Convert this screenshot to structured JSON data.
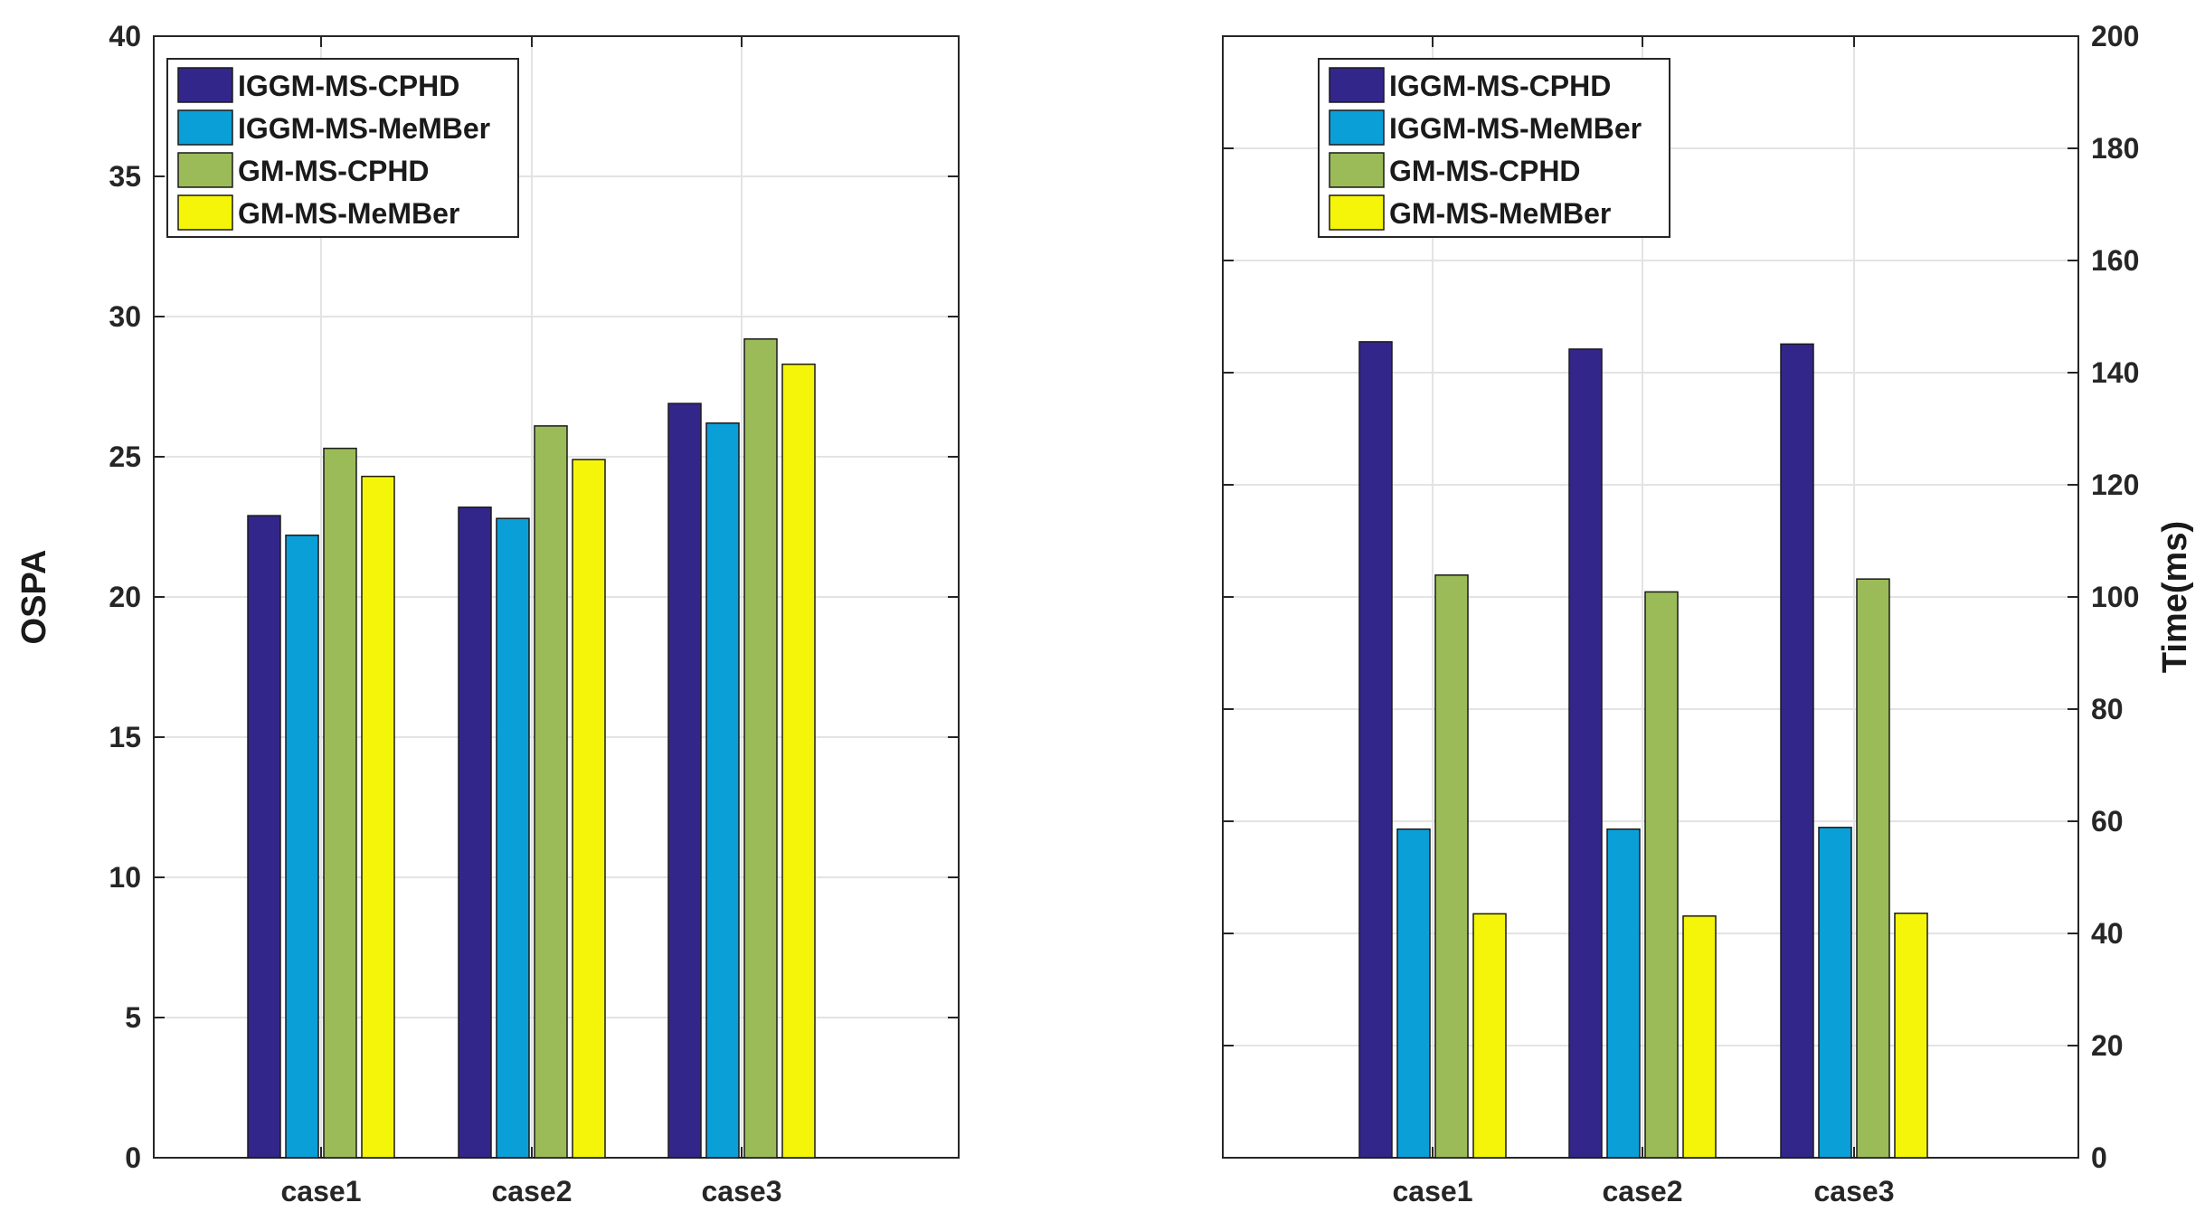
{
  "chart_data": [
    {
      "type": "bar",
      "title": "",
      "xlabel": "",
      "ylabel": "OSPA",
      "y_axis_side": "left",
      "ylim": [
        0,
        40
      ],
      "yticks": [
        0,
        5,
        10,
        15,
        20,
        25,
        30,
        35,
        40
      ],
      "grid": true,
      "legend_position": "top-left",
      "categories": [
        "case1",
        "case2",
        "case3"
      ],
      "series": [
        {
          "name": "IGGM-MS-CPHD",
          "color": "#33268a",
          "values": [
            22.9,
            23.2,
            26.9
          ]
        },
        {
          "name": "IGGM-MS-MeMBer",
          "color": "#0b9fd8",
          "values": [
            22.2,
            22.8,
            26.2
          ]
        },
        {
          "name": "GM-MS-CPHD",
          "color": "#9bbb59",
          "values": [
            25.3,
            26.1,
            29.2
          ]
        },
        {
          "name": "GM-MS-MeMBer",
          "color": "#f5f50a",
          "values": [
            24.3,
            24.9,
            28.3
          ]
        }
      ]
    },
    {
      "type": "bar",
      "title": "",
      "xlabel": "",
      "ylabel": "Time(ms)",
      "y_axis_side": "right",
      "ylim": [
        0,
        200
      ],
      "yticks": [
        0,
        20,
        40,
        60,
        80,
        100,
        120,
        140,
        160,
        180,
        200
      ],
      "grid": true,
      "legend_position": "top-left",
      "categories": [
        "case1",
        "case2",
        "case3"
      ],
      "series": [
        {
          "name": "IGGM-MS-CPHD",
          "color": "#33268a",
          "values": [
            145.5,
            144.2,
            145.1
          ]
        },
        {
          "name": "IGGM-MS-MeMBer",
          "color": "#0b9fd8",
          "values": [
            58.6,
            58.6,
            58.9
          ]
        },
        {
          "name": "GM-MS-CPHD",
          "color": "#9bbb59",
          "values": [
            103.9,
            100.9,
            103.2
          ]
        },
        {
          "name": "GM-MS-MeMBer",
          "color": "#f5f50a",
          "values": [
            43.5,
            43.1,
            43.6
          ]
        }
      ]
    }
  ]
}
